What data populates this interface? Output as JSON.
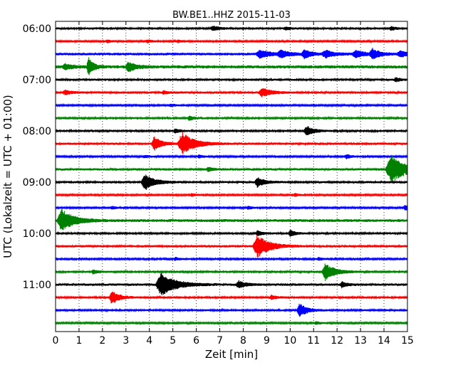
{
  "chart_data": {
    "type": "line",
    "title": "BW.BE1..HHZ 2015-11-03",
    "xlabel": "Zeit  [min]",
    "ylabel": "UTC (Lokalzeit = UTC + 01:00)",
    "x_ticks": [
      0,
      1,
      2,
      3,
      4,
      5,
      6,
      7,
      8,
      9,
      10,
      11,
      12,
      13,
      14,
      15
    ],
    "xlim": [
      0,
      15
    ],
    "y_tick_labels": [
      "06:00",
      "07:00",
      "08:00",
      "09:00",
      "10:00",
      "11:00"
    ],
    "grid": "vertical dotted",
    "trace_colors": [
      "#000000",
      "#ff0000",
      "#0000ff",
      "#008000"
    ],
    "traces": [
      {
        "start": "06:00",
        "color": "#000000",
        "noise": 1.5,
        "events": [
          [
            6.7,
            3,
            0.3
          ],
          [
            14.3,
            2.5,
            0.2
          ],
          [
            9.8,
            2,
            0.2
          ]
        ]
      },
      {
        "start": "06:15",
        "color": "#ff0000",
        "noise": 1.3,
        "events": [
          [
            2.2,
            2,
            0.2
          ],
          [
            3.9,
            2,
            0.2
          ],
          [
            5.2,
            1.8,
            0.2
          ]
        ]
      },
      {
        "start": "06:30",
        "color": "#0000ff",
        "noise": 1.8,
        "events": [
          [
            8.7,
            6,
            0.4
          ],
          [
            9.6,
            5,
            0.4
          ],
          [
            10.6,
            6,
            0.3
          ],
          [
            11.5,
            5,
            0.4
          ],
          [
            12.8,
            5,
            0.4
          ],
          [
            13.5,
            7,
            0.3
          ],
          [
            14.7,
            4,
            0.4
          ]
        ]
      },
      {
        "start": "06:45",
        "color": "#008000",
        "noise": 2.2,
        "events": [
          [
            1.4,
            14,
            0.2
          ],
          [
            3.1,
            7,
            0.3
          ],
          [
            0.4,
            4,
            0.3
          ]
        ]
      },
      {
        "start": "07:00",
        "color": "#000000",
        "noise": 1.5,
        "events": [
          [
            14.5,
            3,
            0.2
          ]
        ]
      },
      {
        "start": "07:15",
        "color": "#ff0000",
        "noise": 1.5,
        "events": [
          [
            0.4,
            3,
            0.3
          ],
          [
            4.6,
            2.5,
            0.2
          ],
          [
            8.8,
            6,
            0.4
          ]
        ]
      },
      {
        "start": "07:30",
        "color": "#0000ff",
        "noise": 1.2,
        "events": [
          [
            4.9,
            2,
            0.2
          ]
        ]
      },
      {
        "start": "07:45",
        "color": "#008000",
        "noise": 1.4,
        "events": [
          [
            5.7,
            3,
            0.2
          ]
        ]
      },
      {
        "start": "08:00",
        "color": "#000000",
        "noise": 1.4,
        "events": [
          [
            10.7,
            7,
            0.3
          ],
          [
            5.1,
            3,
            0.2
          ]
        ]
      },
      {
        "start": "08:15",
        "color": "#ff0000",
        "noise": 1.6,
        "events": [
          [
            4.2,
            10,
            0.3
          ],
          [
            5.4,
            16,
            0.5
          ]
        ]
      },
      {
        "start": "08:30",
        "color": "#0000ff",
        "noise": 1.2,
        "events": [
          [
            3.8,
            2,
            0.2
          ],
          [
            6.1,
            2.5,
            0.2
          ],
          [
            12.4,
            3,
            0.2
          ]
        ]
      },
      {
        "start": "08:45",
        "color": "#008000",
        "noise": 1.6,
        "events": [
          [
            14.3,
            20,
            0.6
          ],
          [
            6.5,
            3,
            0.2
          ]
        ]
      },
      {
        "start": "09:00",
        "color": "#000000",
        "noise": 1.5,
        "events": [
          [
            3.8,
            12,
            0.4
          ],
          [
            8.6,
            7,
            0.3
          ]
        ]
      },
      {
        "start": "09:15",
        "color": "#ff0000",
        "noise": 1.2,
        "events": [
          [
            5.8,
            2,
            0.2
          ],
          [
            10.2,
            2,
            0.2
          ]
        ]
      },
      {
        "start": "09:30",
        "color": "#0000ff",
        "noise": 1.2,
        "events": [
          [
            14.9,
            4,
            0.2
          ],
          [
            2.4,
            2,
            0.2
          ],
          [
            8.2,
            2,
            0.2
          ]
        ]
      },
      {
        "start": "09:45",
        "color": "#008000",
        "noise": 2.0,
        "events": [
          [
            0.25,
            16,
            0.5
          ]
        ]
      },
      {
        "start": "10:00",
        "color": "#000000",
        "noise": 1.4,
        "events": [
          [
            10.0,
            5,
            0.2
          ],
          [
            8.6,
            4,
            0.2
          ]
        ]
      },
      {
        "start": "10:15",
        "color": "#ff0000",
        "noise": 1.6,
        "events": [
          [
            8.6,
            16,
            0.5
          ]
        ]
      },
      {
        "start": "10:30",
        "color": "#0000ff",
        "noise": 1.3,
        "events": [
          [
            5.1,
            2,
            0.2
          ],
          [
            11.2,
            2,
            0.2
          ]
        ]
      },
      {
        "start": "10:45",
        "color": "#008000",
        "noise": 1.4,
        "events": [
          [
            11.5,
            12,
            0.4
          ],
          [
            1.6,
            3,
            0.2
          ]
        ]
      },
      {
        "start": "11:00",
        "color": "#000000",
        "noise": 1.7,
        "events": [
          [
            4.5,
            16,
            0.6
          ],
          [
            7.8,
            5,
            0.3
          ],
          [
            12.2,
            4,
            0.2
          ]
        ]
      },
      {
        "start": "11:15",
        "color": "#ff0000",
        "noise": 1.4,
        "events": [
          [
            2.4,
            10,
            0.3
          ],
          [
            9.2,
            3,
            0.2
          ]
        ]
      },
      {
        "start": "11:30",
        "color": "#0000ff",
        "noise": 1.4,
        "events": [
          [
            10.4,
            10,
            0.3
          ]
        ]
      },
      {
        "start": "11:45",
        "color": "#008000",
        "noise": 1.2,
        "events": [
          [
            11.1,
            2,
            0.2
          ]
        ]
      }
    ]
  }
}
